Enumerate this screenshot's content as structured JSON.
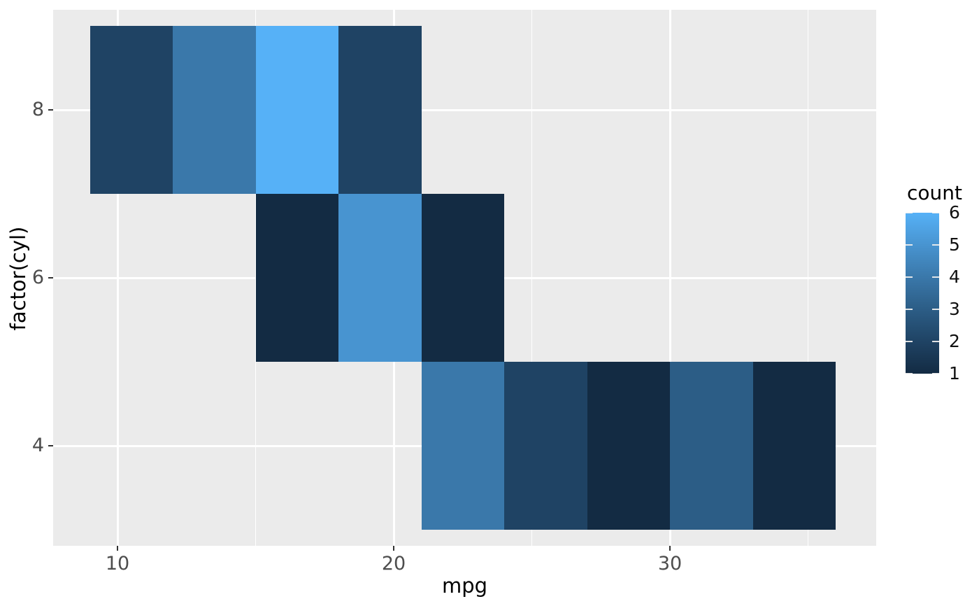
{
  "figure": {
    "background": "#FFFFFF",
    "panel_background": "#EBEBEB",
    "grid_color": "#FFFFFF",
    "tick_mark_color": "#333333",
    "axis_text_color": "#4D4D4D",
    "title_text_color": "#000000"
  },
  "chart_data": {
    "type": "heatmap",
    "title": "",
    "xlabel": "mpg",
    "ylabel": "factor(cyl)",
    "legend_title": "count",
    "x_axis": {
      "ticks": [
        10,
        20,
        30
      ],
      "minor_ticks": [
        15,
        25,
        35
      ],
      "range": [
        7.65,
        37.35
      ]
    },
    "y_axis": {
      "categories_top_to_bottom": [
        "8",
        "6",
        "4"
      ],
      "label_4": "4",
      "label_6": "6",
      "label_8": "8"
    },
    "bin_width_mpg": 3,
    "tiles": [
      {
        "cyl": "8",
        "mpg_from": 9,
        "mpg_to": 12,
        "count": 2
      },
      {
        "cyl": "8",
        "mpg_from": 12,
        "mpg_to": 15,
        "count": 4
      },
      {
        "cyl": "8",
        "mpg_from": 15,
        "mpg_to": 18,
        "count": 6
      },
      {
        "cyl": "8",
        "mpg_from": 18,
        "mpg_to": 21,
        "count": 2
      },
      {
        "cyl": "6",
        "mpg_from": 15,
        "mpg_to": 18,
        "count": 1
      },
      {
        "cyl": "6",
        "mpg_from": 18,
        "mpg_to": 21,
        "count": 5
      },
      {
        "cyl": "6",
        "mpg_from": 21,
        "mpg_to": 24,
        "count": 1
      },
      {
        "cyl": "4",
        "mpg_from": 21,
        "mpg_to": 24,
        "count": 4
      },
      {
        "cyl": "4",
        "mpg_from": 24,
        "mpg_to": 27,
        "count": 2
      },
      {
        "cyl": "4",
        "mpg_from": 27,
        "mpg_to": 30,
        "count": 1
      },
      {
        "cyl": "4",
        "mpg_from": 30,
        "mpg_to": 33,
        "count": 3
      },
      {
        "cyl": "4",
        "mpg_from": 33,
        "mpg_to": 36,
        "count": 1
      }
    ],
    "color_scale": {
      "low_color": "#132B43",
      "high_color": "#56B1F7",
      "count_colors": {
        "1": "#132B43",
        "2": "#1F4364",
        "3": "#2C5D86",
        "4": "#3A78AA",
        "5": "#4894D0",
        "6": "#56B1F7"
      },
      "legend_ticks_top_to_bottom": [
        6,
        5,
        4,
        3,
        2,
        1
      ],
      "legend_range": [
        1,
        6
      ],
      "legend_position": "right"
    }
  }
}
